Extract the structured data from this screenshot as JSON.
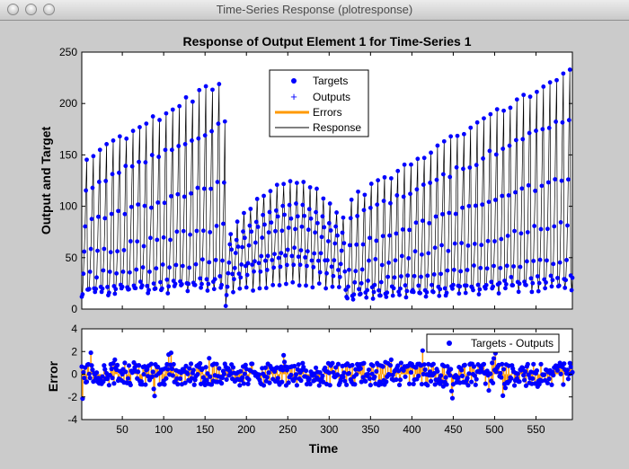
{
  "window": {
    "title": "Time-Series Response (plotresponse)"
  },
  "chart_data": [
    {
      "type": "line",
      "title": "Response of Output Element 1 for Time-Series 1",
      "xlabel": "",
      "ylabel": "Output and Target",
      "xlim": [
        1,
        594
      ],
      "ylim": [
        0,
        250
      ],
      "yticks": [
        "0",
        "50",
        "100",
        "150",
        "200",
        "250"
      ],
      "legend_position": "top-center",
      "legend": [
        "Targets",
        "Outputs",
        "Errors",
        "Response"
      ],
      "series_note": "Periodic series (period ~8 samples); peaks ~130-235 for t=1-175, smooth band 20-120 for t=175-320, peaks ~100-235 for t=320-594",
      "colors": {
        "targets": "#0000ff",
        "outputs": "#0000ff",
        "errors": "#ff9900",
        "response": "#000000"
      }
    },
    {
      "type": "scatter",
      "xlabel": "Time",
      "ylabel": "Error",
      "xlim": [
        1,
        594
      ],
      "ylim": [
        -4,
        4
      ],
      "xticks": [
        "50",
        "100",
        "150",
        "200",
        "250",
        "300",
        "350",
        "400",
        "450",
        "500",
        "550"
      ],
      "yticks": [
        "-4",
        "-2",
        "0",
        "2",
        "4"
      ],
      "legend": [
        "Targets - Outputs"
      ],
      "legend_position": "top-right",
      "series_note": "Errors mostly within ±1.5, extremes ~+3.8 at t=150, ~-2.9 at t=473",
      "colors": {
        "points": "#0000ff",
        "stems": "#ff9900"
      }
    }
  ]
}
